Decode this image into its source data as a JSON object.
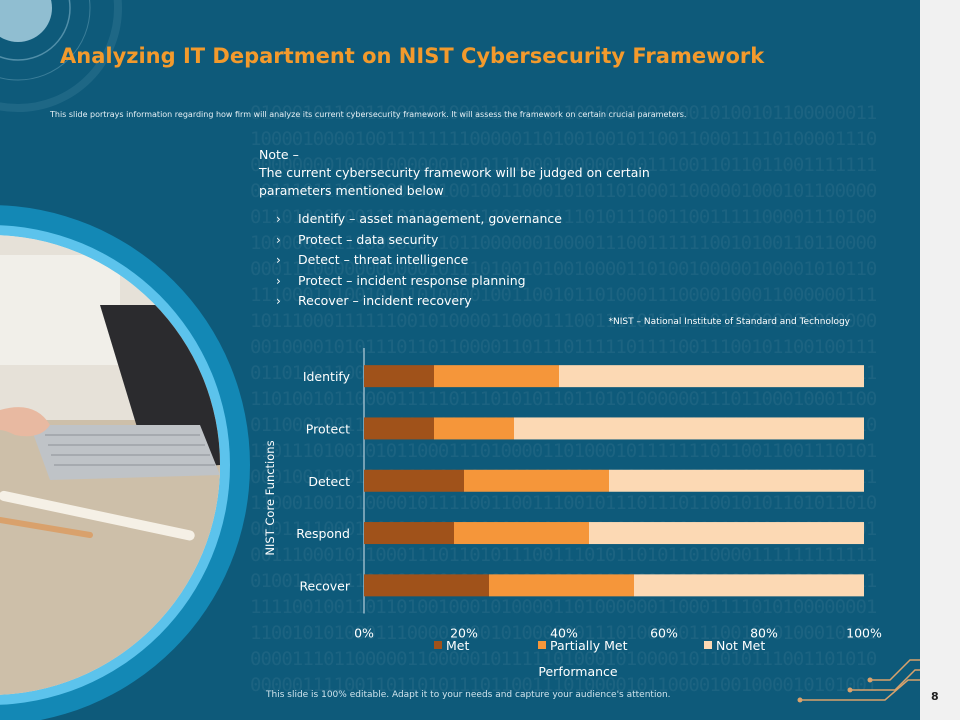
{
  "slide": {
    "title": "Analyzing IT Department on NIST Cybersecurity Framework",
    "subtitle": "This slide portrays information regarding how firm will analyze its current cybersecurity framework. It will assess the framework on certain crucial parameters.",
    "note_heading": "Note –",
    "note_body": "The current cybersecurity framework will be judged on certain parameters mentioned below",
    "bullets": [
      "Identify – asset management, governance",
      "Protect – data security",
      "Detect – threat intelligence",
      "Protect – incident response planning",
      "Recover – incident recovery"
    ],
    "bullet_glyph": "›",
    "footnote": "*NIST – National Institute of Standard and Technology",
    "footer": "This slide is 100% editable. Adapt it to your needs and capture your audience's attention.",
    "page_number": "8"
  },
  "colors": {
    "background": "#0e5a7a",
    "title": "#f39a2c",
    "met": "#a0521a",
    "partially_met": "#f5963a",
    "not_met": "#fcd9b4"
  },
  "chart_data": {
    "type": "bar",
    "orientation": "horizontal",
    "stacked": true,
    "categories": [
      "Identify",
      "Protect",
      "Detect",
      "Respond",
      "Recover"
    ],
    "series": [
      {
        "name": "Met",
        "values": [
          14,
          14,
          20,
          18,
          25
        ]
      },
      {
        "name": "Partially Met",
        "values": [
          25,
          16,
          29,
          27,
          29
        ]
      },
      {
        "name": "Not Met",
        "values": [
          61,
          70,
          51,
          55,
          46
        ]
      }
    ],
    "xlim": [
      0,
      100
    ],
    "xticks": [
      "0%",
      "20%",
      "40%",
      "60%",
      "80%",
      "100%"
    ],
    "xlabel": "Performance",
    "ylabel": "NIST Core Functions",
    "legend": "bottom",
    "grid": false
  }
}
